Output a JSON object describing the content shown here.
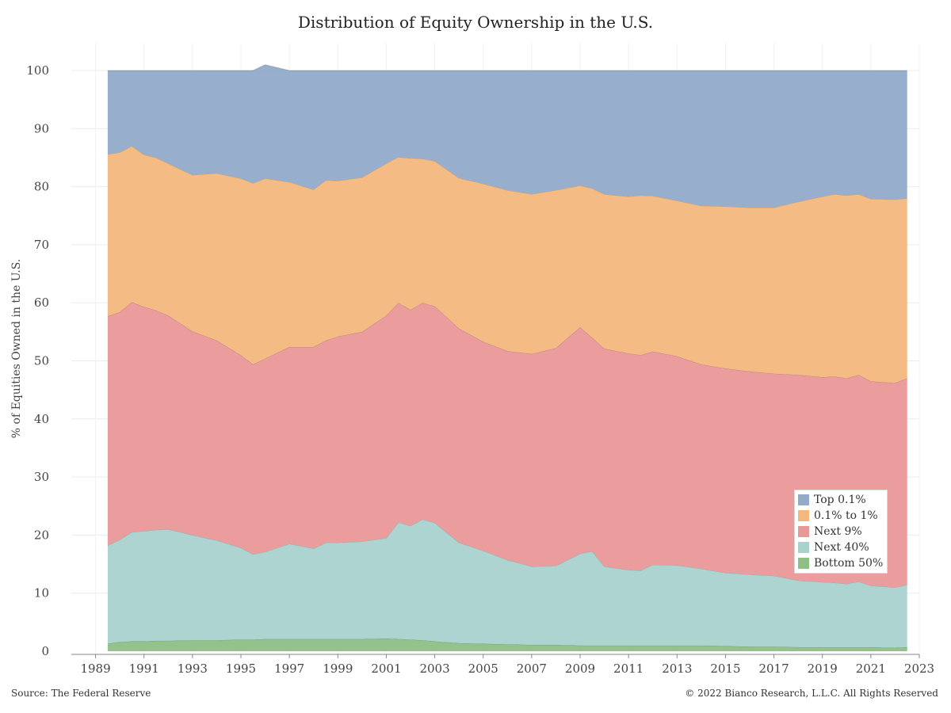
{
  "chart_data": {
    "type": "area",
    "stacked": true,
    "title": "Distribution of Equity Ownership in the U.S.",
    "xlabel": "",
    "ylabel": "% of Equities Owned in the U.S.",
    "xlim": [
      1988,
      2023
    ],
    "ylim": [
      0,
      100
    ],
    "x_ticks": [
      "1989",
      "1991",
      "1993",
      "1995",
      "1997",
      "1999",
      "2001",
      "2003",
      "2005",
      "2007",
      "2009",
      "2011",
      "2013",
      "2015",
      "2017",
      "2019",
      "2021",
      "2023"
    ],
    "y_ticks": [
      "0",
      "10",
      "20",
      "30",
      "40",
      "50",
      "60",
      "70",
      "80",
      "90",
      "100"
    ],
    "grid": true,
    "legend_position": "bottom-right",
    "x": [
      1989.5,
      1990,
      1990.5,
      1991,
      1991.5,
      1992,
      1993,
      1994,
      1995,
      1995.5,
      1996,
      1997,
      1998,
      1998.5,
      1999,
      2000,
      2001,
      2001.5,
      2002,
      2002.5,
      2003,
      2004,
      2005,
      2006,
      2007,
      2008,
      2009,
      2009.5,
      2010,
      2011,
      2011.5,
      2012,
      2013,
      2014,
      2015,
      2016,
      2017,
      2018,
      2019,
      2019.5,
      2020,
      2020.5,
      2021,
      2022,
      2022.5
    ],
    "series": [
      {
        "name": "Bottom 50%",
        "color": "#8fbe87",
        "values": [
          1.3,
          1.6,
          1.7,
          1.7,
          1.8,
          1.8,
          1.9,
          1.9,
          2.0,
          2.0,
          2.1,
          2.1,
          2.1,
          2.1,
          2.1,
          2.1,
          2.2,
          2.1,
          2.0,
          1.9,
          1.7,
          1.4,
          1.3,
          1.2,
          1.1,
          1.1,
          1.0,
          1.0,
          1.0,
          1.0,
          1.0,
          1.0,
          1.0,
          1.0,
          0.9,
          0.8,
          0.8,
          0.7,
          0.7,
          0.7,
          0.7,
          0.7,
          0.7,
          0.6,
          0.7
        ]
      },
      {
        "name": "Next 40%",
        "color": "#a9d2cf",
        "values": [
          16.9,
          17.6,
          18.8,
          19.0,
          19.1,
          19.2,
          18.1,
          17.2,
          15.8,
          14.7,
          15.0,
          16.4,
          15.6,
          16.6,
          16.6,
          16.8,
          17.3,
          20.1,
          19.6,
          20.8,
          20.4,
          17.3,
          16.0,
          14.5,
          13.5,
          13.6,
          15.8,
          16.2,
          13.6,
          13.0,
          12.9,
          13.9,
          13.8,
          13.2,
          12.6,
          12.4,
          12.2,
          11.5,
          11.2,
          11.1,
          10.9,
          11.3,
          10.6,
          10.4,
          10.7
        ]
      },
      {
        "name": "Next 9%",
        "color": "#ea9797",
        "values": [
          39.5,
          39.2,
          39.6,
          38.6,
          37.8,
          36.8,
          35.1,
          34.4,
          33.2,
          32.7,
          33.3,
          33.9,
          34.7,
          34.8,
          35.5,
          36.1,
          38.3,
          37.8,
          37.2,
          37.3,
          37.3,
          36.9,
          36.0,
          36.0,
          36.6,
          37.5,
          39.0,
          36.8,
          37.5,
          37.3,
          37.1,
          36.7,
          36.0,
          35.2,
          35.2,
          35.0,
          34.8,
          35.4,
          35.3,
          35.5,
          35.4,
          35.6,
          35.2,
          35.2,
          35.6
        ]
      },
      {
        "name": "0.1% to 1%",
        "color": "#f3b87d",
        "values": [
          27.9,
          27.5,
          26.9,
          26.2,
          26.3,
          26.2,
          26.9,
          28.8,
          30.4,
          31.2,
          31.0,
          28.4,
          27.1,
          27.6,
          26.8,
          26.6,
          26.2,
          25.1,
          26.1,
          24.8,
          25.0,
          25.9,
          27.2,
          27.7,
          27.5,
          27.2,
          24.4,
          25.7,
          26.6,
          27.0,
          27.5,
          26.8,
          26.8,
          27.3,
          27.9,
          28.2,
          28.6,
          29.8,
          31.1,
          31.4,
          31.5,
          31.1,
          31.4,
          31.6,
          31.0
        ]
      },
      {
        "name": "Top 0.1%",
        "color": "#91abc9",
        "values": [
          14.4,
          14.1,
          13.0,
          14.5,
          15.0,
          16.0,
          18.0,
          17.7,
          18.6,
          19.4,
          19.6,
          19.2,
          20.5,
          18.9,
          19.0,
          18.4,
          16.0,
          14.9,
          15.1,
          15.2,
          15.6,
          18.5,
          19.5,
          20.6,
          21.3,
          20.6,
          19.8,
          20.3,
          21.3,
          21.7,
          21.5,
          21.6,
          22.4,
          23.3,
          23.4,
          23.6,
          23.6,
          22.6,
          21.7,
          21.3,
          21.5,
          21.3,
          22.1,
          22.2,
          22.0
        ]
      }
    ]
  },
  "legend": {
    "items": [
      {
        "label": "Top 0.1%",
        "color": "#91abc9"
      },
      {
        "label": "0.1% to 1%",
        "color": "#f3b87d"
      },
      {
        "label": "Next 9%",
        "color": "#ea9797"
      },
      {
        "label": "Next 40%",
        "color": "#a9d2cf"
      },
      {
        "label": "Bottom 50%",
        "color": "#8fbe87"
      }
    ]
  },
  "footer": {
    "source": "Source: The Federal Reserve",
    "copyright": "© 2022 Bianco Research, L.L.C. All Rights Reserved"
  }
}
